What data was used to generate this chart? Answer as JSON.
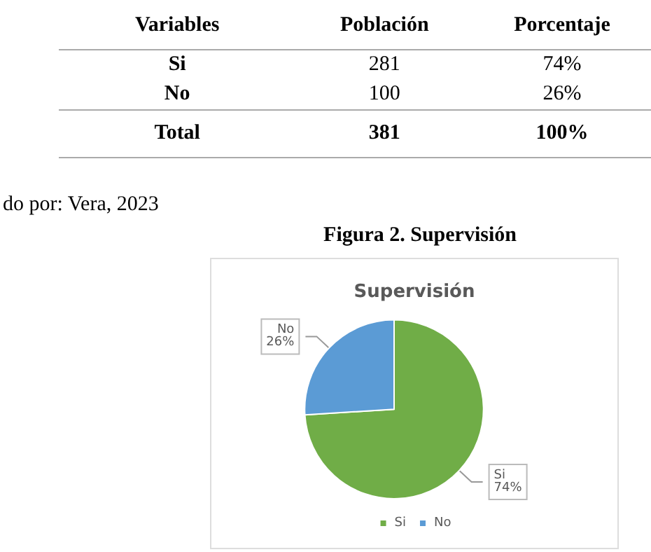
{
  "chart_data": [
    {
      "type": "other",
      "annotations": [
        "Variables",
        "Población",
        "Porcentaje",
        "Si",
        "281",
        "74%",
        "No",
        "100",
        "26%",
        "Total",
        "381",
        "100%"
      ]
    },
    {
      "type": "pie",
      "title": "Figura 2. Supervisión",
      "subtitle": "Supervisión",
      "categories": [
        "Si",
        "No"
      ],
      "values": [
        74,
        26
      ],
      "colors": [
        "#70ad47",
        "#5b9bd5"
      ],
      "value_labels": [
        "74%",
        "26%"
      ],
      "legend": "bottom",
      "annotations": [
        "do por: Vera, 2023"
      ]
    }
  ]
}
